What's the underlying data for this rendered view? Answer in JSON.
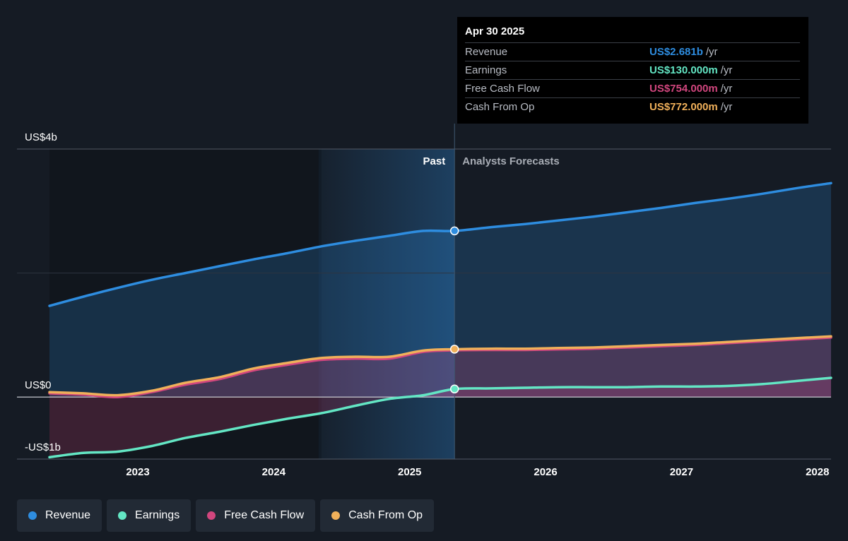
{
  "tooltip": {
    "date": "Apr 30 2025",
    "rows": [
      {
        "label": "Revenue",
        "value": "US$2.681b",
        "unit": "/yr",
        "color": "#2e8de0"
      },
      {
        "label": "Earnings",
        "value": "US$130.000m",
        "unit": "/yr",
        "color": "#63e6c4"
      },
      {
        "label": "Free Cash Flow",
        "value": "US$754.000m",
        "unit": "/yr",
        "color": "#d1467e"
      },
      {
        "label": "Cash From Op",
        "value": "US$772.000m",
        "unit": "/yr",
        "color": "#f0b05a"
      }
    ]
  },
  "legend": [
    {
      "label": "Revenue",
      "color": "#2e8de0"
    },
    {
      "label": "Earnings",
      "color": "#63e6c4"
    },
    {
      "label": "Free Cash Flow",
      "color": "#d1467e"
    },
    {
      "label": "Cash From Op",
      "color": "#f0b05a"
    }
  ],
  "chart_data": {
    "type": "line",
    "x_range": [
      2022.35,
      2028.1
    ],
    "ylim": [
      -1,
      4
    ],
    "y_tick_labels": [
      {
        "value": 4,
        "label": "US$4b"
      },
      {
        "value": 0,
        "label": "US$0"
      },
      {
        "value": -1,
        "label": "-US$1b"
      }
    ],
    "x_ticks": [
      2023,
      2024,
      2025,
      2026,
      2027,
      2028
    ],
    "x_tick_labels": [
      "2023",
      "2024",
      "2025",
      "2026",
      "2027",
      "2028"
    ],
    "past_label": "Past",
    "forecast_label": "Analysts Forecasts",
    "divider_x": 2025.33,
    "highlight_start_x": 2024.33,
    "series": [
      {
        "name": "Revenue",
        "color": "#2e8de0",
        "x": [
          2022.35,
          2022.6,
          2022.85,
          2023.1,
          2023.35,
          2023.6,
          2023.85,
          2024.1,
          2024.35,
          2024.6,
          2024.85,
          2025.1,
          2025.33,
          2025.6,
          2025.85,
          2026.1,
          2026.35,
          2026.6,
          2026.85,
          2027.1,
          2027.35,
          2027.6,
          2027.85,
          2028.1
        ],
        "y": [
          1.47,
          1.62,
          1.76,
          1.89,
          2.0,
          2.11,
          2.22,
          2.32,
          2.43,
          2.52,
          2.6,
          2.68,
          2.68,
          2.74,
          2.79,
          2.85,
          2.91,
          2.98,
          3.05,
          3.13,
          3.2,
          3.28,
          3.37,
          3.45
        ]
      },
      {
        "name": "Earnings",
        "color": "#63e6c4",
        "x": [
          2022.35,
          2022.6,
          2022.85,
          2023.1,
          2023.35,
          2023.6,
          2023.85,
          2024.1,
          2024.35,
          2024.6,
          2024.85,
          2025.1,
          2025.33,
          2025.6,
          2025.85,
          2026.1,
          2026.35,
          2026.6,
          2026.85,
          2027.1,
          2027.35,
          2027.6,
          2027.85,
          2028.1
        ],
        "y": [
          -0.97,
          -0.9,
          -0.88,
          -0.79,
          -0.66,
          -0.56,
          -0.45,
          -0.35,
          -0.26,
          -0.14,
          -0.03,
          0.03,
          0.13,
          0.14,
          0.15,
          0.16,
          0.16,
          0.16,
          0.17,
          0.17,
          0.18,
          0.21,
          0.26,
          0.31
        ]
      },
      {
        "name": "Free Cash Flow",
        "color": "#d1467e",
        "x": [
          2022.35,
          2022.6,
          2022.85,
          2023.1,
          2023.35,
          2023.6,
          2023.85,
          2024.1,
          2024.35,
          2024.6,
          2024.85,
          2025.1,
          2025.33,
          2025.6,
          2025.85,
          2026.1,
          2026.35,
          2026.6,
          2026.85,
          2027.1,
          2027.35,
          2027.6,
          2027.85,
          2028.1
        ],
        "y": [
          0.06,
          0.04,
          0.0,
          0.08,
          0.2,
          0.29,
          0.43,
          0.52,
          0.6,
          0.62,
          0.62,
          0.73,
          0.754,
          0.76,
          0.76,
          0.77,
          0.78,
          0.8,
          0.82,
          0.84,
          0.87,
          0.9,
          0.93,
          0.96
        ]
      },
      {
        "name": "Cash From Op",
        "color": "#f0b05a",
        "x": [
          2022.35,
          2022.6,
          2022.85,
          2023.1,
          2023.35,
          2023.6,
          2023.85,
          2024.1,
          2024.35,
          2024.6,
          2024.85,
          2025.1,
          2025.33,
          2025.6,
          2025.85,
          2026.1,
          2026.35,
          2026.6,
          2026.85,
          2027.1,
          2027.35,
          2027.6,
          2027.85,
          2028.1
        ],
        "y": [
          0.08,
          0.06,
          0.03,
          0.1,
          0.23,
          0.32,
          0.46,
          0.55,
          0.63,
          0.65,
          0.65,
          0.75,
          0.772,
          0.78,
          0.78,
          0.79,
          0.8,
          0.82,
          0.84,
          0.86,
          0.89,
          0.92,
          0.95,
          0.98
        ]
      }
    ]
  }
}
